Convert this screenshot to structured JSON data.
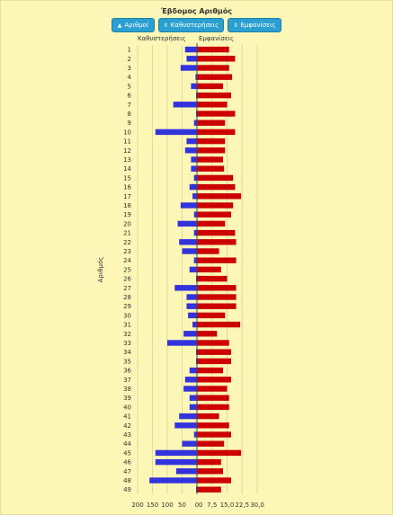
{
  "page": {
    "title": "Έβδομος Αριθμός",
    "buttons": [
      {
        "label": "Αριθμοί",
        "icon": "sort-up-icon",
        "glyph": "▲"
      },
      {
        "label": "Καθυστερήσεις",
        "icon": "sort-icon",
        "glyph": "⇕"
      },
      {
        "label": "Εμφανίσεις",
        "icon": "sort-icon",
        "glyph": "⇕"
      }
    ],
    "left_header": "Καθυστερήσεις",
    "right_header": "Εμφανίσεις",
    "y_label": "Αριθμός"
  },
  "chart_data": {
    "type": "bar",
    "orientation": "horizontal-butterfly",
    "categories": [
      "1",
      "2",
      "3",
      "4",
      "5",
      "6",
      "7",
      "8",
      "9",
      "10",
      "11",
      "12",
      "13",
      "14",
      "15",
      "16",
      "17",
      "18",
      "19",
      "20",
      "21",
      "22",
      "23",
      "24",
      "25",
      "26",
      "27",
      "28",
      "29",
      "30",
      "31",
      "32",
      "33",
      "34",
      "35",
      "36",
      "37",
      "38",
      "39",
      "40",
      "41",
      "42",
      "43",
      "44",
      "45",
      "46",
      "47",
      "48",
      "49"
    ],
    "series": [
      {
        "name": "Καθυστερήσεις",
        "color": "#3333dd",
        "xlim": [
          0,
          200
        ],
        "ticks": [
          "200",
          "150",
          "100",
          "50",
          "0"
        ],
        "values": [
          40,
          35,
          55,
          5,
          20,
          3,
          80,
          3,
          10,
          140,
          35,
          40,
          20,
          20,
          10,
          25,
          15,
          55,
          10,
          65,
          10,
          60,
          50,
          10,
          25,
          3,
          75,
          35,
          35,
          30,
          15,
          45,
          100,
          3,
          3,
          25,
          40,
          45,
          25,
          25,
          60,
          75,
          10,
          50,
          140,
          140,
          70,
          160,
          3
        ]
      },
      {
        "name": "Εμφανίσεις",
        "color": "#cc0000",
        "xlim": [
          0,
          30
        ],
        "ticks": [
          "0",
          "7,5",
          "15,0",
          "22,5",
          "30,0"
        ],
        "values": [
          16,
          19,
          16,
          17.5,
          13,
          17,
          15,
          19,
          14,
          19,
          14,
          14,
          13,
          13.5,
          18,
          19,
          22,
          18,
          17,
          14,
          19,
          19.5,
          11,
          19.5,
          12,
          15,
          19.5,
          19.5,
          19.5,
          14,
          21.5,
          10,
          16,
          17,
          17,
          13,
          17,
          15,
          16,
          16,
          11,
          16,
          17,
          13.5,
          22,
          12,
          13,
          17,
          12
        ]
      }
    ],
    "ylabel": "Αριθμός"
  }
}
